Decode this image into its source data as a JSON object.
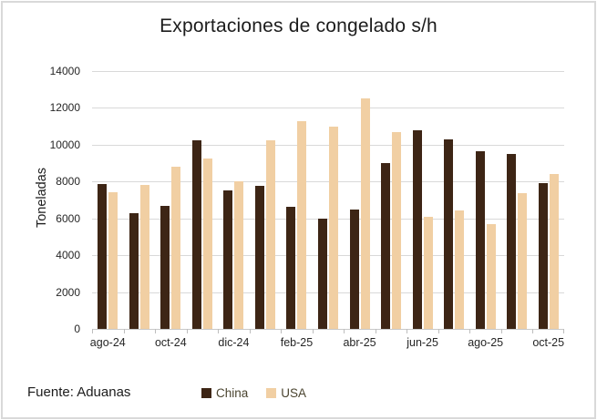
{
  "chart_data": {
    "type": "bar",
    "title": "Exportaciones de congelado s/h",
    "ylabel": "Toneladas",
    "source_note": "Fuente: Aduanas",
    "categories": [
      "ago-24",
      "sep-24",
      "oct-24",
      "nov-24",
      "dic-24",
      "ene-25",
      "feb-25",
      "mar-25",
      "abr-25",
      "may-25",
      "jun-25",
      "jul-25",
      "ago-25",
      "sep-25",
      "oct-25"
    ],
    "x_label_every": 2,
    "x_labels_shown": [
      "ago-24",
      "oct-24",
      "dic-24",
      "feb-25",
      "abr-25",
      "jun-25",
      "ago-25",
      "oct-25"
    ],
    "series": [
      {
        "name": "China",
        "color": "#3d2515",
        "values": [
          7850,
          6300,
          6700,
          10250,
          7500,
          7750,
          6650,
          6000,
          6500,
          9000,
          10800,
          10300,
          9650,
          9500,
          7900
        ]
      },
      {
        "name": "USA",
        "color": "#f1cfa3",
        "values": [
          7400,
          7800,
          8800,
          9250,
          8000,
          10250,
          11300,
          11000,
          12500,
          10700,
          6100,
          6450,
          5700,
          7350,
          8400
        ]
      }
    ],
    "ylim": [
      0,
      14000
    ],
    "ytick_step": 2000,
    "yticks": [
      0,
      2000,
      4000,
      6000,
      8000,
      10000,
      12000,
      14000
    ],
    "grid": "horizontal",
    "legend_position": "bottom"
  },
  "frame": {
    "border_color": "#d9d9d9",
    "background": "#ffffff",
    "gridline_color": "#d9d9d9",
    "axis_line_color": "#c8c8c8"
  }
}
